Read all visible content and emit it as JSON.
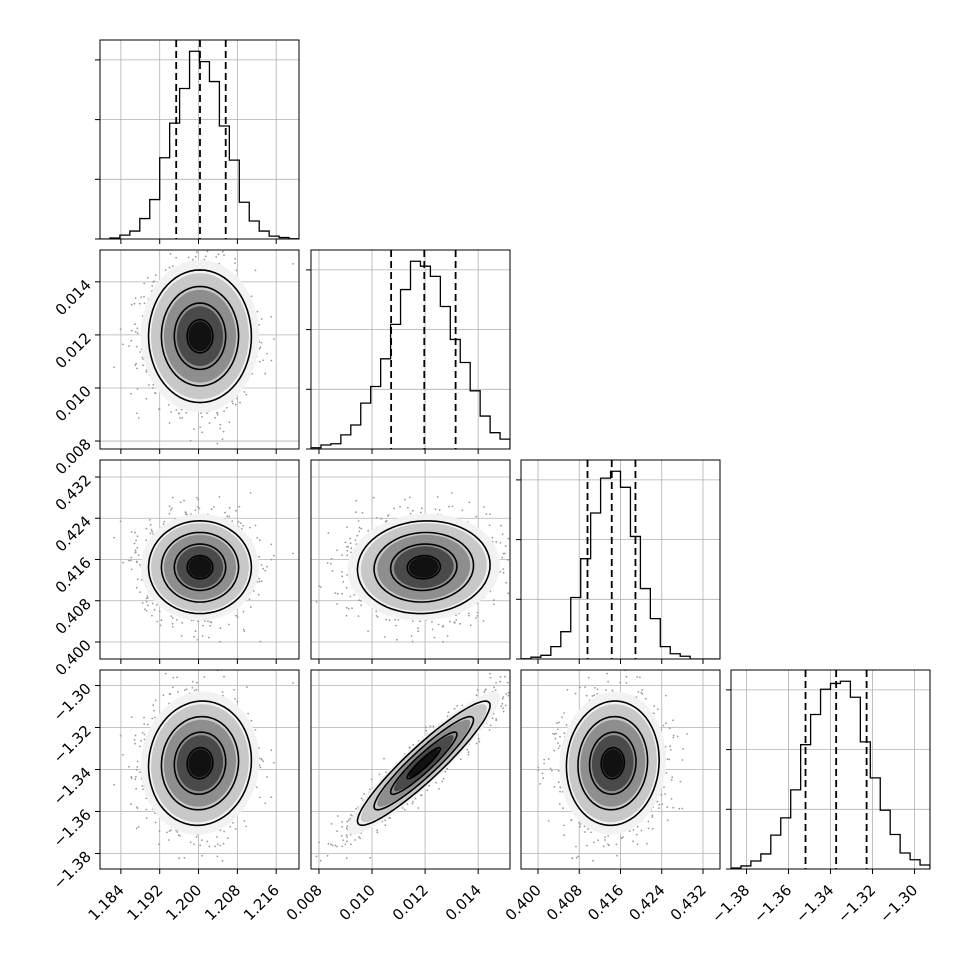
{
  "chart_data": {
    "type": "corner",
    "params": [
      {
        "mean": 1.2003,
        "sd": 0.0053,
        "lim": [
          1.1797,
          1.2207
        ],
        "ticks": [
          1.184,
          1.192,
          1.2,
          1.208,
          1.216
        ],
        "tick_labels": [
          "1.184",
          "1.192",
          "1.200",
          "1.208",
          "1.216"
        ],
        "quantiles": [
          1.1954,
          1.2003,
          1.2056
        ]
      },
      {
        "mean": 0.01195,
        "sd": 0.00125,
        "lim": [
          0.0077,
          0.0152
        ],
        "ticks": [
          0.008,
          0.01,
          0.012,
          0.014
        ],
        "tick_labels": [
          "0.008",
          "0.010",
          "0.012",
          "0.014"
        ],
        "quantiles": [
          0.01072,
          0.01197,
          0.01315
        ]
      },
      {
        "mean": 0.4145,
        "sd": 0.0045,
        "lim": [
          0.3967,
          0.4353
        ],
        "ticks": [
          0.4,
          0.408,
          0.416,
          0.424,
          0.432
        ],
        "tick_labels": [
          "0.400",
          "0.408",
          "0.416",
          "0.424",
          "0.432"
        ],
        "quantiles": [
          0.4096,
          0.4143,
          0.4189
        ]
      },
      {
        "mean": -1.337,
        "sd": 0.0148,
        "lim": [
          -1.3874,
          -1.2926
        ],
        "ticks": [
          -1.38,
          -1.36,
          -1.34,
          -1.32,
          -1.3
        ],
        "tick_labels": [
          "−1.38",
          "−1.36",
          "−1.34",
          "−1.32",
          "−1.30"
        ],
        "quantiles": [
          -1.3519,
          -1.3373,
          -1.3228
        ]
      }
    ],
    "correlations": [
      [
        1,
        0,
        0,
        0.05
      ],
      [
        0,
        1,
        0.05,
        0.93
      ],
      [
        0,
        0.05,
        1,
        0.05
      ],
      [
        0.05,
        0.93,
        0.05,
        1
      ]
    ],
    "histogram_bins": 20,
    "contour_levels": [
      0.5,
      1.0,
      1.5,
      2.0
    ],
    "grid": true,
    "colors": {
      "points": "#9a9a9a",
      "lines": "#000000"
    }
  }
}
